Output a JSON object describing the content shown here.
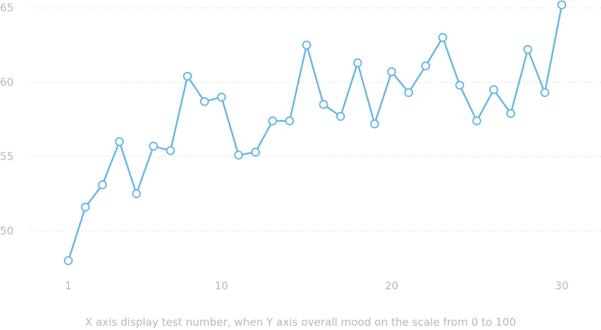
{
  "chart_data": {
    "type": "line",
    "title": "",
    "caption": "X axis display test number, when Y axis overall mood on the scale from 0 to 100",
    "xlabel": "",
    "ylabel": "",
    "x": [
      1,
      2,
      3,
      4,
      5,
      6,
      7,
      8,
      9,
      10,
      11,
      12,
      13,
      14,
      15,
      16,
      17,
      18,
      19,
      20,
      21,
      22,
      23,
      24,
      25,
      26,
      27,
      28,
      29,
      30
    ],
    "series": [
      {
        "values": [
          48.0,
          51.6,
          53.1,
          56.0,
          52.5,
          55.7,
          55.4,
          60.4,
          58.7,
          59.0,
          55.1,
          55.3,
          57.4,
          57.4,
          62.5,
          58.5,
          57.7,
          61.3,
          57.2,
          60.7,
          59.3,
          61.1,
          63.0,
          59.8,
          57.4,
          59.5,
          57.9,
          62.2,
          59.3,
          65.2
        ],
        "color": "#6ab8e4"
      }
    ],
    "xticks": [
      1,
      10,
      20,
      30
    ],
    "xtick_labels": [
      "1",
      "10",
      "20",
      "30"
    ],
    "yticks": [
      50,
      55,
      60,
      65
    ],
    "ytick_labels": [
      "50",
      "55",
      "60",
      "65"
    ],
    "ylim": [
      46.0,
      65.5
    ],
    "xlim": [
      1,
      30
    ],
    "grid": "horizontal dotted",
    "legend": "none",
    "colors": {
      "line": "#6ab8e4",
      "marker_fill": "#ffffff",
      "grid": "#cfd2d6",
      "tick_text": "#b5b8bd"
    }
  }
}
